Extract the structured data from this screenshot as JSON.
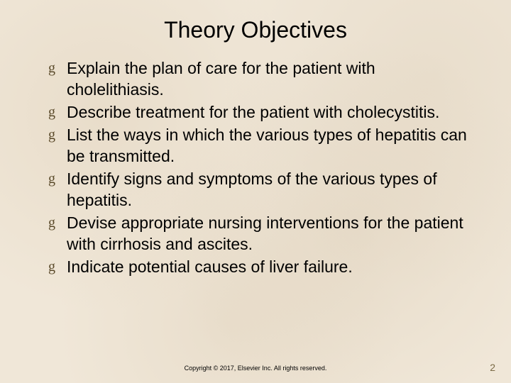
{
  "title": "Theory Objectives",
  "bullets": [
    "Explain the plan of care for the patient with cholelithiasis.",
    "Describe treatment for the patient with cholecystitis.",
    "List the ways in which the various types of hepatitis can be transmitted.",
    "Identify signs and symptoms of the various types of hepatitis.",
    "Devise appropriate nursing interventions for the patient with cirrhosis and ascites.",
    "Indicate potential causes of liver failure."
  ],
  "bullet_glyph": "g",
  "footer": "Copyright © 2017, Elsevier Inc. All rights reserved.",
  "page_number": "2",
  "colors": {
    "background": "#f0e7d8",
    "text": "#000000",
    "bullet": "#5a4a2a",
    "pagenum": "#7a6a45"
  },
  "typography": {
    "title_fontsize": 32,
    "body_fontsize": 23,
    "footer_fontsize": 9,
    "pagenum_fontsize": 14,
    "font_family": "Arial"
  }
}
